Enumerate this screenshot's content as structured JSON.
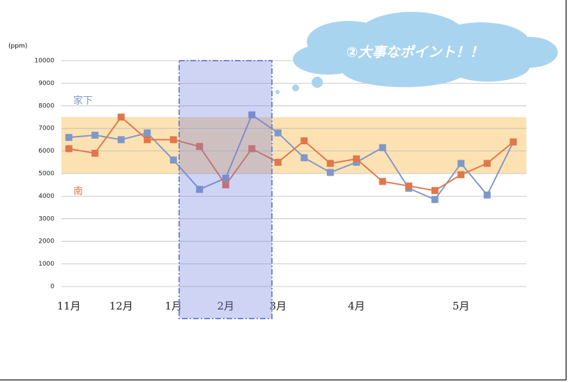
{
  "chart_data": {
    "type": "line",
    "y_label": "(ppm)",
    "annotation": "②大事なポイント！！",
    "categories": [
      "11月",
      null,
      "12月",
      null,
      "1月",
      null,
      "2月",
      null,
      "3月",
      null,
      null,
      "4月",
      null,
      null,
      null,
      "5月",
      null,
      null
    ],
    "series": [
      {
        "name": "家下",
        "color": "#7f98c9",
        "values": [
          6600,
          6700,
          6500,
          6800,
          5600,
          4300,
          4800,
          7600,
          6800,
          5700,
          5050,
          5500,
          6150,
          4350,
          3850,
          5450,
          4050,
          6400
        ]
      },
      {
        "name": "南",
        "color": "#e0774a",
        "values": [
          6100,
          5900,
          7500,
          6500,
          6500,
          6200,
          4500,
          6100,
          5500,
          6450,
          5450,
          5650,
          4650,
          4450,
          4250,
          4950,
          5450,
          6400
        ]
      }
    ],
    "ylim": [
      0,
      10000
    ],
    "yticks": [
      0,
      1000,
      2000,
      3000,
      4000,
      5000,
      6000,
      7000,
      8000,
      9000,
      10000
    ],
    "highlight_range": [
      5000,
      7500
    ],
    "highlight_color": "#fbd89a",
    "grid": true
  }
}
